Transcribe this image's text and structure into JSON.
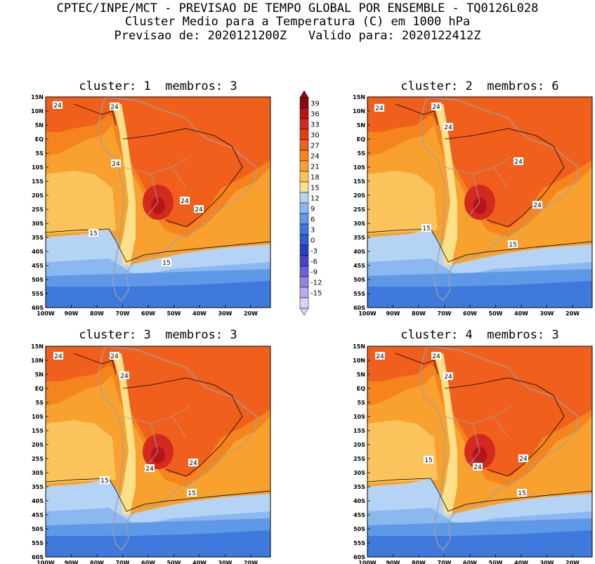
{
  "header": {
    "line1": "CPTEC/INPE/MCT - PREVISAO DE TEMPO GLOBAL POR ENSEMBLE - TQ0126L028",
    "line2": "Cluster Medio para a Temperatura (C) em 1000 hPa",
    "line3": "Previsao de: 2020121200Z   Valido para: 2020122412Z"
  },
  "axes": {
    "lat_labels": [
      "15N",
      "10N",
      "5N",
      "EQ",
      "5S",
      "10S",
      "15S",
      "20S",
      "25S",
      "30S",
      "35S",
      "40S",
      "45S",
      "50S",
      "55S",
      "60S"
    ],
    "lon_labels": [
      "100W",
      "90W",
      "80W",
      "70W",
      "60W",
      "50W",
      "40W",
      "30W",
      "20W"
    ]
  },
  "colorbar": {
    "levels": [
      "39",
      "36",
      "33",
      "30",
      "27",
      "24",
      "21",
      "18",
      "15",
      "12",
      "9",
      "6",
      "3",
      "0",
      "-3",
      "-6",
      "-9",
      "-12",
      "-15"
    ],
    "colors": [
      "#8b0a10",
      "#b5141a",
      "#d32a20",
      "#ea3a14",
      "#f0601c",
      "#f5841e",
      "#f9a12e",
      "#fbc35b",
      "#fde08a",
      "#b5d3f5",
      "#8bb8ef",
      "#5f98e6",
      "#3f79dc",
      "#2d5fce",
      "#2b3fc0",
      "#4a45c8",
      "#6d5fd3",
      "#9585de",
      "#bba9ea",
      "#ddd2f5"
    ]
  },
  "panels": [
    {
      "title": "cluster: 1  membros: 3",
      "contour_labels": [
        "24",
        "24",
        "24",
        "24",
        "24",
        "15",
        "15"
      ]
    },
    {
      "title": "cluster: 2  membros: 6",
      "contour_labels": [
        "24",
        "24",
        "24",
        "24",
        "24",
        "15",
        "15"
      ]
    },
    {
      "title": "cluster: 3  membros: 3",
      "contour_labels": [
        "24",
        "24",
        "24",
        "24",
        "24",
        "15",
        "15"
      ]
    },
    {
      "title": "cluster: 4  membros: 3",
      "contour_labels": [
        "24",
        "24",
        "24",
        "24",
        "24",
        "15",
        "15"
      ]
    }
  ]
}
